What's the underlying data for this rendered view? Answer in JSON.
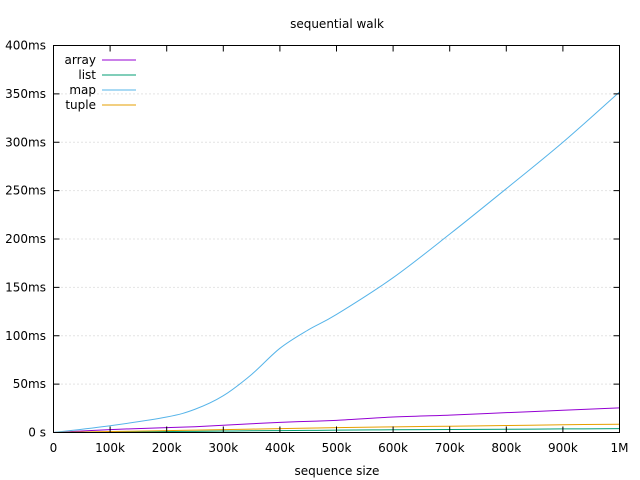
{
  "chart_data": {
    "type": "line",
    "title": "sequential walk",
    "xlabel": "sequence size",
    "ylabel": "",
    "xlim": [
      0,
      1000000
    ],
    "ylim": [
      0,
      400
    ],
    "x_ticks": [
      0,
      100000,
      200000,
      300000,
      400000,
      500000,
      600000,
      700000,
      800000,
      900000,
      1000000
    ],
    "x_tick_labels": [
      "0",
      "100k",
      "200k",
      "300k",
      "400k",
      "500k",
      "600k",
      "700k",
      "800k",
      "900k",
      "1M"
    ],
    "y_ticks": [
      0,
      50,
      100,
      150,
      200,
      250,
      300,
      350,
      400
    ],
    "y_tick_labels": [
      "0 s",
      "50ms",
      "100ms",
      "150ms",
      "200ms",
      "250ms",
      "300ms",
      "350ms",
      "400ms"
    ],
    "grid": true,
    "legend_position": "top-left",
    "x": [
      0,
      100000,
      200000,
      250000,
      300000,
      350000,
      400000,
      450000,
      500000,
      600000,
      700000,
      800000,
      900000,
      1000000
    ],
    "series": [
      {
        "name": "array",
        "color": "#9400d3",
        "values": [
          0,
          3,
          5,
          6,
          7.5,
          9,
          10.5,
          11.5,
          12.5,
          16,
          18,
          20.5,
          23,
          25.5
        ]
      },
      {
        "name": "list",
        "color": "#009e73",
        "values": [
          0,
          0.5,
          1,
          1.2,
          1.5,
          1.8,
          2,
          2.2,
          2.4,
          2.8,
          3.1,
          3.4,
          3.7,
          4
        ]
      },
      {
        "name": "map",
        "color": "#56b4e9",
        "values": [
          0,
          7,
          16,
          24,
          38,
          60,
          87,
          106,
          122,
          160,
          205,
          252,
          300,
          352
        ]
      },
      {
        "name": "tuple",
        "color": "#e69f00",
        "values": [
          0,
          1,
          2,
          2.5,
          3,
          3.5,
          4,
          4.5,
          5,
          5.8,
          6.5,
          7.2,
          8,
          8.5
        ]
      }
    ]
  }
}
